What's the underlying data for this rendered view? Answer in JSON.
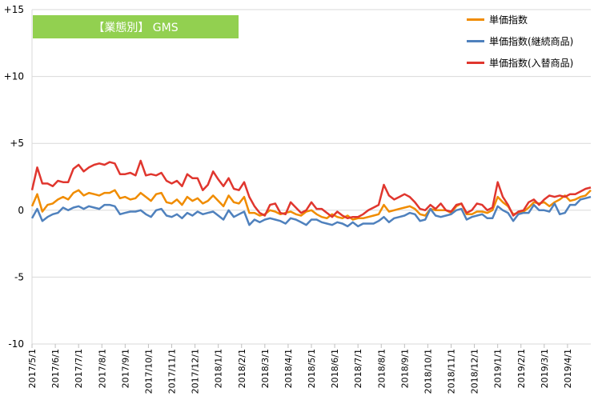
{
  "chart_data": {
    "type": "line",
    "title": "【業態別】 GMS",
    "title_bg": "#92d050",
    "ylim": [
      -10,
      15
    ],
    "yticks": [
      {
        "value": 15,
        "label": "+15"
      },
      {
        "value": 10,
        "label": "+10"
      },
      {
        "value": 5,
        "label": "+5"
      },
      {
        "value": 0,
        "label": "0"
      },
      {
        "value": -5,
        "label": "-5"
      },
      {
        "value": -10,
        "label": "-10"
      }
    ],
    "grid": true,
    "legend_position": "top-right",
    "x_labels": [
      "2017/5/1",
      "2017/6/1",
      "2017/7/1",
      "2017/8/1",
      "2017/9/1",
      "2017/10/1",
      "2017/11/1",
      "2017/12/1",
      "2018/1/1",
      "2018/2/1",
      "2018/3/1",
      "2018/4/1",
      "2018/5/1",
      "2018/6/1",
      "2018/7/1",
      "2018/8/1",
      "2018/9/1",
      "2018/10/1",
      "2018/11/1",
      "2018/12/1",
      "2019/1/1",
      "2019/2/1",
      "2019/3/1",
      "2019/4/1"
    ],
    "x_period": "weekly",
    "series": [
      {
        "name": "単価指数",
        "color": "#f08c00",
        "values": [
          0.3,
          1.2,
          -0.1,
          0.4,
          0.5,
          0.8,
          1.0,
          0.8,
          1.3,
          1.5,
          1.1,
          1.3,
          1.2,
          1.1,
          1.3,
          1.3,
          1.5,
          0.9,
          1.0,
          0.8,
          0.9,
          1.3,
          1.0,
          0.7,
          1.2,
          1.3,
          0.6,
          0.5,
          0.8,
          0.4,
          1.0,
          0.7,
          0.9,
          0.5,
          0.7,
          1.1,
          0.7,
          0.3,
          1.1,
          0.6,
          0.5,
          1.0,
          -0.2,
          -0.2,
          -0.4,
          -0.3,
          0.0,
          -0.1,
          -0.3,
          -0.2,
          -0.1,
          -0.3,
          -0.4,
          -0.1,
          0.0,
          -0.3,
          -0.5,
          -0.6,
          -0.3,
          -0.5,
          -0.6,
          -0.4,
          -0.7,
          -0.6,
          -0.6,
          -0.5,
          -0.4,
          -0.3,
          0.4,
          -0.1,
          0.0,
          0.1,
          0.2,
          0.3,
          0.1,
          -0.3,
          -0.4,
          0.1,
          0.0,
          0.0,
          0.0,
          -0.2,
          0.3,
          0.5,
          -0.3,
          -0.3,
          -0.1,
          -0.1,
          -0.2,
          0.0,
          1.0,
          0.6,
          0.3,
          -0.3,
          -0.2,
          -0.1,
          0.2,
          0.6,
          0.5,
          0.6,
          0.3,
          0.6,
          0.8,
          1.1,
          0.7,
          0.8,
          1.0,
          1.1,
          1.5
        ]
      },
      {
        "name": "単価指数(継続商品)",
        "color": "#4f81bd",
        "values": [
          -0.6,
          0.1,
          -0.8,
          -0.5,
          -0.3,
          -0.2,
          0.2,
          0.0,
          0.2,
          0.3,
          0.1,
          0.3,
          0.2,
          0.1,
          0.4,
          0.4,
          0.3,
          -0.3,
          -0.2,
          -0.1,
          -0.1,
          0.0,
          -0.3,
          -0.5,
          0.0,
          0.1,
          -0.4,
          -0.5,
          -0.3,
          -0.6,
          -0.2,
          -0.4,
          -0.1,
          -0.3,
          -0.2,
          -0.1,
          -0.4,
          -0.7,
          0.0,
          -0.5,
          -0.3,
          -0.1,
          -1.1,
          -0.7,
          -0.9,
          -0.7,
          -0.6,
          -0.7,
          -0.8,
          -1.0,
          -0.6,
          -0.7,
          -0.9,
          -1.1,
          -0.7,
          -0.7,
          -0.9,
          -1.0,
          -1.1,
          -0.9,
          -1.0,
          -1.2,
          -0.9,
          -1.2,
          -1.0,
          -1.0,
          -1.0,
          -0.8,
          -0.5,
          -0.9,
          -0.6,
          -0.5,
          -0.4,
          -0.2,
          -0.3,
          -0.8,
          -0.7,
          0.1,
          -0.4,
          -0.5,
          -0.4,
          -0.3,
          0.0,
          0.1,
          -0.7,
          -0.5,
          -0.4,
          -0.3,
          -0.6,
          -0.6,
          0.3,
          0.0,
          -0.2,
          -0.8,
          -0.3,
          -0.2,
          -0.2,
          0.4,
          0.0,
          0.0,
          -0.1,
          0.5,
          -0.3,
          -0.2,
          0.4,
          0.4,
          0.8,
          0.9,
          1.0
        ]
      },
      {
        "name": "単価指数(入替商品)",
        "color": "#e0362e",
        "values": [
          1.5,
          3.2,
          2.0,
          2.0,
          1.8,
          2.2,
          2.1,
          2.1,
          3.1,
          3.4,
          2.9,
          3.2,
          3.4,
          3.5,
          3.4,
          3.6,
          3.5,
          2.7,
          2.7,
          2.8,
          2.6,
          3.7,
          2.6,
          2.7,
          2.6,
          2.8,
          2.2,
          2.0,
          2.2,
          1.8,
          2.7,
          2.4,
          2.4,
          1.5,
          1.9,
          2.9,
          2.3,
          1.8,
          2.4,
          1.6,
          1.5,
          2.1,
          1.0,
          0.3,
          -0.2,
          -0.4,
          0.4,
          0.5,
          -0.2,
          -0.3,
          0.6,
          0.2,
          -0.2,
          0.0,
          0.6,
          0.1,
          0.1,
          -0.2,
          -0.5,
          -0.1,
          -0.4,
          -0.6,
          -0.5,
          -0.5,
          -0.3,
          0.0,
          0.2,
          0.4,
          1.9,
          1.1,
          0.8,
          1.0,
          1.2,
          1.0,
          0.6,
          0.1,
          0.0,
          0.4,
          0.1,
          0.5,
          0.0,
          -0.1,
          0.4,
          0.5,
          -0.2,
          0.0,
          0.5,
          0.4,
          0.0,
          0.2,
          2.1,
          1.0,
          0.4,
          -0.4,
          -0.1,
          0.0,
          0.6,
          0.8,
          0.4,
          0.8,
          1.1,
          1.0,
          1.1,
          1.0,
          1.2,
          1.2,
          1.4,
          1.6,
          1.7
        ]
      }
    ]
  }
}
